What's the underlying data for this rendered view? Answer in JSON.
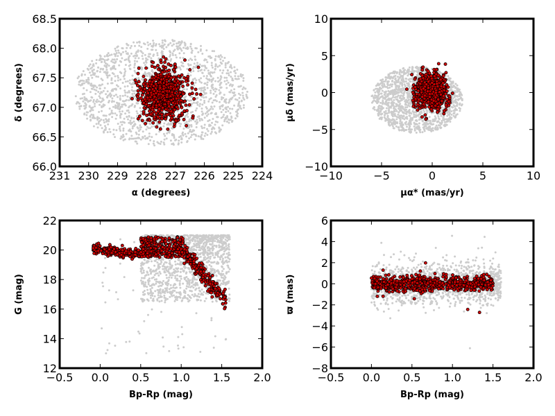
{
  "colors": {
    "background": "#ffffff",
    "field_stars": "#cccccc",
    "members_fill": "#cc0000",
    "members_edge": "#000000",
    "frame": "#000000"
  },
  "chart_data": [
    {
      "type": "scatter",
      "panel": "top-left",
      "xlabel": "α (degrees)",
      "ylabel": "δ (degrees)",
      "xlim": [
        231,
        224
      ],
      "ylim": [
        66.0,
        68.5
      ],
      "xticks": [
        "231",
        "230",
        "229",
        "228",
        "227",
        "226",
        "225",
        "224"
      ],
      "yticks": [
        "66.0",
        "66.5",
        "67.0",
        "67.5",
        "68.0",
        "68.5"
      ],
      "series": [
        {
          "role": "field",
          "color": "#cccccc",
          "shape": "ellipse",
          "center": [
            227.5,
            67.25
          ],
          "spread": [
            3.0,
            0.9
          ],
          "count": 1600
        },
        {
          "role": "members",
          "color": "#cc0000",
          "shape": "tilted-ellipse",
          "center": [
            227.4,
            67.22
          ],
          "spread": [
            0.85,
            0.22
          ],
          "tilt": -0.55,
          "count": 700
        }
      ]
    },
    {
      "type": "scatter",
      "panel": "top-right",
      "xlabel": "μα* (mas/yr)",
      "ylabel": "μδ (mas/yr)",
      "xlim": [
        -10,
        10
      ],
      "ylim": [
        -10,
        10
      ],
      "xticks": [
        "−10",
        "−5",
        "0",
        "5",
        "10"
      ],
      "yticks": [
        "−10",
        "−5",
        "0",
        "5",
        "10"
      ],
      "series": [
        {
          "role": "field",
          "color": "#cccccc",
          "shape": "ellipse",
          "center": [
            -1.5,
            -1.0
          ],
          "spread": [
            4.5,
            4.5
          ],
          "count": 1500
        },
        {
          "role": "members",
          "color": "#cc0000",
          "shape": "tilted-ellipse",
          "center": [
            -0.1,
            0.1
          ],
          "spread": [
            1.8,
            1.2
          ],
          "tilt": -0.4,
          "count": 700
        }
      ]
    },
    {
      "type": "scatter",
      "panel": "bottom-left",
      "xlabel": "Bp-Rp (mag)",
      "ylabel": "G (mag)",
      "xlim": [
        -0.5,
        2.0
      ],
      "ylim": [
        12,
        22
      ],
      "y_inverted": false,
      "xticks": [
        "−0.5",
        "0.0",
        "0.5",
        "1.0",
        "1.5",
        "2.0"
      ],
      "yticks": [
        "12",
        "14",
        "16",
        "18",
        "20",
        "22"
      ],
      "series": [
        {
          "role": "field",
          "color": "#cccccc",
          "shape": "cmd-field",
          "count": 1500
        },
        {
          "role": "members",
          "color": "#cc0000",
          "shape": "cmd-sequence",
          "count": 700
        }
      ]
    },
    {
      "type": "scatter",
      "panel": "bottom-right",
      "xlabel": "Bp-Rp (mag)",
      "ylabel": "ϖ (mas)",
      "xlim": [
        -0.5,
        2.0
      ],
      "ylim": [
        -8,
        6
      ],
      "xticks": [
        "−0.5",
        "0.0",
        "0.5",
        "1.0",
        "1.5",
        "2.0"
      ],
      "yticks": [
        "−8",
        "−6",
        "−4",
        "−2",
        "0",
        "2",
        "4",
        "6"
      ],
      "series": [
        {
          "role": "field",
          "color": "#cccccc",
          "shape": "band",
          "xrange": [
            0.0,
            1.6
          ],
          "ycenter": 0.0,
          "yspread": 0.9,
          "count": 1500
        },
        {
          "role": "members",
          "color": "#cc0000",
          "shape": "band",
          "xrange": [
            0.0,
            1.5
          ],
          "ycenter": 0.0,
          "yspread": 0.35,
          "count": 700
        }
      ]
    }
  ]
}
